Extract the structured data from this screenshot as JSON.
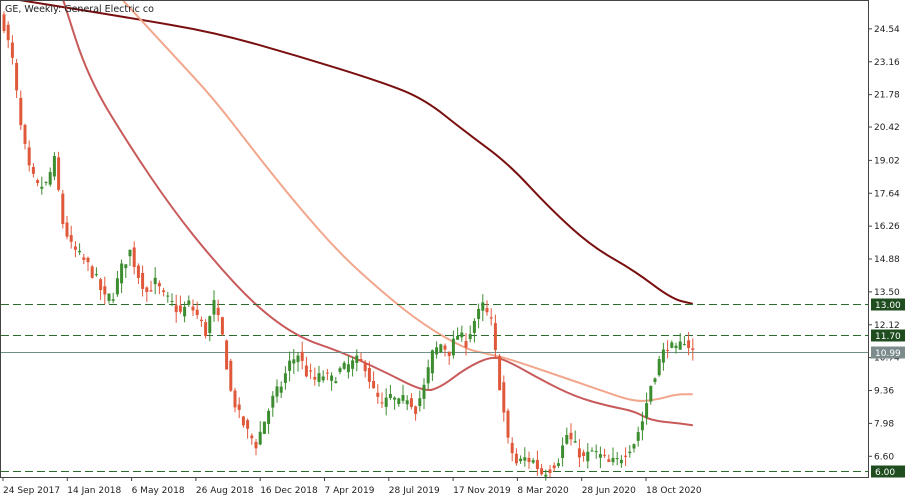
{
  "chart_data": {
    "type": "candlestick",
    "title": "GE, Weekly:  General Electric co",
    "ylim": [
      5.73,
      25.71
    ],
    "y_ticks": [
      "24.54",
      "23.16",
      "21.78",
      "20.42",
      "19.02",
      "17.64",
      "16.26",
      "14.88",
      "13.50",
      "12.12",
      "10.74",
      "9.36",
      "7.98",
      "6.60"
    ],
    "x_tick_labels": [
      "24 Sep 2017",
      "14 Jan 2018",
      "6 May 2018",
      "26 Aug 2018",
      "16 Dec 2018",
      "7 Apr 2019",
      "28 Jul 2019",
      "17 Nov 2019",
      "8 Mar 2020",
      "28 Jun 2020",
      "18 Oct 2020"
    ],
    "candle_count": 165,
    "close_anchors": [
      [
        0,
        24.7
      ],
      [
        2,
        23.2
      ],
      [
        4,
        20.4
      ],
      [
        6,
        18.6
      ],
      [
        8,
        17.9
      ],
      [
        10,
        18.0
      ],
      [
        12,
        19.0
      ],
      [
        14,
        16.4
      ],
      [
        16,
        15.4
      ],
      [
        18,
        15.0
      ],
      [
        20,
        14.6
      ],
      [
        22,
        14.0
      ],
      [
        24,
        13.2
      ],
      [
        26,
        13.4
      ],
      [
        28,
        14.5
      ],
      [
        30,
        15.2
      ],
      [
        32,
        14.2
      ],
      [
        34,
        13.5
      ],
      [
        36,
        13.9
      ],
      [
        38,
        13.3
      ],
      [
        40,
        13.0
      ],
      [
        42,
        12.6
      ],
      [
        44,
        13.0
      ],
      [
        46,
        12.5
      ],
      [
        48,
        11.8
      ],
      [
        50,
        13.0
      ],
      [
        52,
        11.6
      ],
      [
        54,
        9.3
      ],
      [
        56,
        8.3
      ],
      [
        58,
        7.6
      ],
      [
        60,
        7.1
      ],
      [
        62,
        8.1
      ],
      [
        64,
        9.0
      ],
      [
        66,
        9.6
      ],
      [
        68,
        10.5
      ],
      [
        70,
        10.9
      ],
      [
        72,
        10.1
      ],
      [
        74,
        9.8
      ],
      [
        76,
        10.0
      ],
      [
        78,
        9.8
      ],
      [
        80,
        10.2
      ],
      [
        82,
        10.4
      ],
      [
        84,
        10.6
      ],
      [
        86,
        10.4
      ],
      [
        88,
        9.3
      ],
      [
        90,
        8.7
      ],
      [
        92,
        9.1
      ],
      [
        94,
        8.8
      ],
      [
        96,
        9.1
      ],
      [
        98,
        8.6
      ],
      [
        100,
        9.5
      ],
      [
        102,
        10.9
      ],
      [
        104,
        11.3
      ],
      [
        106,
        11.0
      ],
      [
        108,
        11.7
      ],
      [
        110,
        11.4
      ],
      [
        112,
        12.3
      ],
      [
        114,
        12.9
      ],
      [
        116,
        12.2
      ],
      [
        118,
        9.6
      ],
      [
        120,
        7.2
      ],
      [
        122,
        6.3
      ],
      [
        124,
        6.5
      ],
      [
        126,
        6.4
      ],
      [
        128,
        5.9
      ],
      [
        130,
        6.1
      ],
      [
        132,
        6.5
      ],
      [
        134,
        7.5
      ],
      [
        136,
        7.0
      ],
      [
        138,
        6.5
      ],
      [
        140,
        6.8
      ],
      [
        142,
        6.6
      ],
      [
        144,
        6.3
      ],
      [
        146,
        6.4
      ],
      [
        148,
        6.8
      ],
      [
        150,
        7.2
      ],
      [
        152,
        8.1
      ],
      [
        154,
        9.6
      ],
      [
        156,
        10.6
      ],
      [
        158,
        11.3
      ],
      [
        160,
        11.0
      ],
      [
        162,
        11.5
      ],
      [
        164,
        11.0
      ]
    ],
    "series": [
      {
        "name": "",
        "color": "#7a0f0f",
        "points": [
          [
            2,
            25.8
          ],
          [
            30,
            25.0
          ],
          [
            50,
            24.4
          ],
          [
            70,
            23.4
          ],
          [
            90,
            22.3
          ],
          [
            100,
            21.6
          ],
          [
            110,
            20.2
          ],
          [
            120,
            18.9
          ],
          [
            130,
            17.0
          ],
          [
            140,
            15.4
          ],
          [
            150,
            14.4
          ],
          [
            159,
            13.2
          ],
          [
            164,
            13.0
          ]
        ]
      },
      {
        "name": "",
        "color": "#f2a68c",
        "points": [
          [
            28,
            25.8
          ],
          [
            40,
            23.5
          ],
          [
            50,
            21.6
          ],
          [
            60,
            19.3
          ],
          [
            70,
            17.1
          ],
          [
            80,
            15.1
          ],
          [
            90,
            13.5
          ],
          [
            100,
            12.1
          ],
          [
            110,
            11.1
          ],
          [
            115,
            10.9
          ],
          [
            120,
            10.7
          ],
          [
            130,
            10.1
          ],
          [
            140,
            9.5
          ],
          [
            148,
            9.0
          ],
          [
            152,
            8.9
          ],
          [
            156,
            9.0
          ],
          [
            160,
            9.2
          ],
          [
            164,
            9.2
          ]
        ]
      },
      {
        "name": "",
        "color": "#c85a5a",
        "points": [
          [
            14,
            25.8
          ],
          [
            20,
            22.5
          ],
          [
            30,
            19.6
          ],
          [
            40,
            17.0
          ],
          [
            50,
            14.8
          ],
          [
            60,
            12.9
          ],
          [
            70,
            11.6
          ],
          [
            80,
            11.0
          ],
          [
            90,
            10.2
          ],
          [
            100,
            9.3
          ],
          [
            104,
            9.5
          ],
          [
            110,
            10.3
          ],
          [
            116,
            10.8
          ],
          [
            120,
            10.6
          ],
          [
            128,
            9.8
          ],
          [
            136,
            9.1
          ],
          [
            144,
            8.7
          ],
          [
            150,
            8.5
          ],
          [
            154,
            8.1
          ],
          [
            160,
            8.0
          ],
          [
            164,
            7.9
          ]
        ]
      }
    ],
    "levels": [
      {
        "value": 13.0,
        "label": "13.00",
        "style": "dashed",
        "color": "#2e6b2e"
      },
      {
        "value": 11.7,
        "label": "11.70",
        "style": "dashed",
        "color": "#2e6b2e"
      },
      {
        "value": 6.0,
        "label": "6.00",
        "style": "dashed",
        "color": "#2e6b2e"
      }
    ],
    "current_price": {
      "value": 10.99,
      "label": "10.99"
    }
  }
}
